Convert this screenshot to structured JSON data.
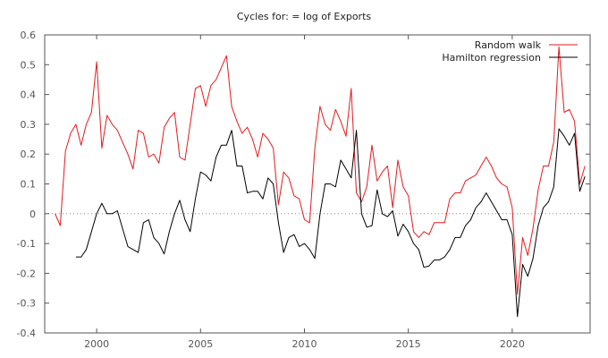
{
  "chart_data": {
    "type": "line",
    "title": "Cycles for: = log of Exports",
    "xlim": [
      1997.5,
      2023.75
    ],
    "ylim": [
      -0.4,
      0.6
    ],
    "xticks": [
      2000,
      2005,
      2010,
      2015,
      2020
    ],
    "yticks": [
      -0.4,
      -0.3,
      -0.2,
      -0.1,
      0,
      0.1,
      0.2,
      0.3,
      0.4,
      0.5,
      0.6
    ],
    "xtick_labels": [
      "2000",
      "2005",
      "2010",
      "2015",
      "2020"
    ],
    "ytick_labels": [
      "-0.4",
      "-0.3",
      "-0.2",
      "-0.1",
      "0",
      "0.1",
      "0.2",
      "0.3",
      "0.4",
      "0.5",
      "0.6"
    ],
    "zero_line": true,
    "legend": "top-right",
    "series": [
      {
        "name": "Random walk",
        "color": "#e41a1c",
        "points": [
          [
            1998.0,
            0.0
          ],
          [
            1998.25,
            -0.04
          ],
          [
            1998.5,
            0.21
          ],
          [
            1998.75,
            0.27
          ],
          [
            1999.0,
            0.3
          ],
          [
            1999.25,
            0.23
          ],
          [
            1999.5,
            0.3
          ],
          [
            1999.75,
            0.34
          ],
          [
            2000.0,
            0.51
          ],
          [
            2000.25,
            0.22
          ],
          [
            2000.5,
            0.33
          ],
          [
            2000.75,
            0.3
          ],
          [
            2001.0,
            0.28
          ],
          [
            2001.25,
            0.24
          ],
          [
            2001.5,
            0.2
          ],
          [
            2001.75,
            0.15
          ],
          [
            2002.0,
            0.28
          ],
          [
            2002.25,
            0.27
          ],
          [
            2002.5,
            0.19
          ],
          [
            2002.75,
            0.2
          ],
          [
            2003.0,
            0.17
          ],
          [
            2003.25,
            0.29
          ],
          [
            2003.5,
            0.32
          ],
          [
            2003.75,
            0.34
          ],
          [
            2004.0,
            0.19
          ],
          [
            2004.25,
            0.18
          ],
          [
            2004.5,
            0.3
          ],
          [
            2004.75,
            0.42
          ],
          [
            2005.0,
            0.43
          ],
          [
            2005.25,
            0.36
          ],
          [
            2005.5,
            0.43
          ],
          [
            2005.75,
            0.45
          ],
          [
            2006.0,
            0.49
          ],
          [
            2006.25,
            0.53
          ],
          [
            2006.5,
            0.36
          ],
          [
            2006.75,
            0.31
          ],
          [
            2007.0,
            0.27
          ],
          [
            2007.25,
            0.29
          ],
          [
            2007.5,
            0.25
          ],
          [
            2007.75,
            0.19
          ],
          [
            2008.0,
            0.27
          ],
          [
            2008.25,
            0.25
          ],
          [
            2008.5,
            0.22
          ],
          [
            2008.75,
            0.03
          ],
          [
            2009.0,
            0.14
          ],
          [
            2009.25,
            0.12
          ],
          [
            2009.5,
            0.06
          ],
          [
            2009.75,
            0.05
          ],
          [
            2010.0,
            -0.02
          ],
          [
            2010.25,
            -0.03
          ],
          [
            2010.5,
            0.22
          ],
          [
            2010.75,
            0.36
          ],
          [
            2011.0,
            0.3
          ],
          [
            2011.25,
            0.28
          ],
          [
            2011.5,
            0.35
          ],
          [
            2011.75,
            0.31
          ],
          [
            2012.0,
            0.26
          ],
          [
            2012.25,
            0.42
          ],
          [
            2012.5,
            0.07
          ],
          [
            2012.75,
            0.04
          ],
          [
            2013.0,
            0.09
          ],
          [
            2013.25,
            0.23
          ],
          [
            2013.5,
            0.11
          ],
          [
            2013.75,
            0.14
          ],
          [
            2014.0,
            0.16
          ],
          [
            2014.25,
            0.02
          ],
          [
            2014.5,
            0.18
          ],
          [
            2014.75,
            0.09
          ],
          [
            2015.0,
            0.06
          ],
          [
            2015.25,
            -0.06
          ],
          [
            2015.5,
            -0.08
          ],
          [
            2015.75,
            -0.06
          ],
          [
            2016.0,
            -0.07
          ],
          [
            2016.25,
            -0.03
          ],
          [
            2016.5,
            -0.03
          ],
          [
            2016.75,
            -0.03
          ],
          [
            2017.0,
            0.05
          ],
          [
            2017.25,
            0.07
          ],
          [
            2017.5,
            0.07
          ],
          [
            2017.75,
            0.11
          ],
          [
            2018.0,
            0.12
          ],
          [
            2018.25,
            0.13
          ],
          [
            2018.5,
            0.16
          ],
          [
            2018.75,
            0.19
          ],
          [
            2019.0,
            0.16
          ],
          [
            2019.25,
            0.12
          ],
          [
            2019.5,
            0.1
          ],
          [
            2019.75,
            0.09
          ],
          [
            2020.0,
            0.02
          ],
          [
            2020.25,
            -0.27
          ],
          [
            2020.5,
            -0.08
          ],
          [
            2020.75,
            -0.14
          ],
          [
            2021.0,
            -0.05
          ],
          [
            2021.25,
            0.08
          ],
          [
            2021.5,
            0.16
          ],
          [
            2021.75,
            0.16
          ],
          [
            2022.0,
            0.24
          ],
          [
            2022.25,
            0.56
          ],
          [
            2022.5,
            0.34
          ],
          [
            2022.75,
            0.35
          ],
          [
            2023.0,
            0.31
          ],
          [
            2023.25,
            0.1
          ],
          [
            2023.5,
            0.16
          ]
        ]
      },
      {
        "name": "Hamilton regression",
        "color": "#000000",
        "points": [
          [
            1999.0,
            -0.145
          ],
          [
            1999.25,
            -0.145
          ],
          [
            1999.5,
            -0.12
          ],
          [
            1999.75,
            -0.06
          ],
          [
            2000.0,
            0.0
          ],
          [
            2000.25,
            0.035
          ],
          [
            2000.5,
            0.0
          ],
          [
            2000.75,
            0.0
          ],
          [
            2001.0,
            0.01
          ],
          [
            2001.25,
            -0.05
          ],
          [
            2001.5,
            -0.11
          ],
          [
            2001.75,
            -0.12
          ],
          [
            2002.0,
            -0.13
          ],
          [
            2002.25,
            -0.03
          ],
          [
            2002.5,
            -0.02
          ],
          [
            2002.75,
            -0.08
          ],
          [
            2003.0,
            -0.1
          ],
          [
            2003.25,
            -0.135
          ],
          [
            2003.5,
            -0.06
          ],
          [
            2003.75,
            0.0
          ],
          [
            2004.0,
            0.045
          ],
          [
            2004.25,
            -0.02
          ],
          [
            2004.5,
            -0.06
          ],
          [
            2004.75,
            0.05
          ],
          [
            2005.0,
            0.14
          ],
          [
            2005.25,
            0.13
          ],
          [
            2005.5,
            0.11
          ],
          [
            2005.75,
            0.19
          ],
          [
            2006.0,
            0.23
          ],
          [
            2006.25,
            0.23
          ],
          [
            2006.5,
            0.28
          ],
          [
            2006.75,
            0.16
          ],
          [
            2007.0,
            0.16
          ],
          [
            2007.25,
            0.07
          ],
          [
            2007.5,
            0.075
          ],
          [
            2007.75,
            0.075
          ],
          [
            2008.0,
            0.05
          ],
          [
            2008.25,
            0.12
          ],
          [
            2008.5,
            0.1
          ],
          [
            2008.75,
            -0.03
          ],
          [
            2009.0,
            -0.13
          ],
          [
            2009.25,
            -0.08
          ],
          [
            2009.5,
            -0.07
          ],
          [
            2009.75,
            -0.11
          ],
          [
            2010.0,
            -0.1
          ],
          [
            2010.25,
            -0.12
          ],
          [
            2010.5,
            -0.15
          ],
          [
            2010.75,
            0.0
          ],
          [
            2011.0,
            0.1
          ],
          [
            2011.25,
            0.1
          ],
          [
            2011.5,
            0.09
          ],
          [
            2011.75,
            0.18
          ],
          [
            2012.0,
            0.15
          ],
          [
            2012.25,
            0.12
          ],
          [
            2012.5,
            0.28
          ],
          [
            2012.75,
            0.0
          ],
          [
            2013.0,
            -0.045
          ],
          [
            2013.25,
            -0.04
          ],
          [
            2013.5,
            0.08
          ],
          [
            2013.75,
            0.0
          ],
          [
            2014.0,
            -0.01
          ],
          [
            2014.25,
            0.01
          ],
          [
            2014.5,
            -0.075
          ],
          [
            2014.75,
            -0.035
          ],
          [
            2015.0,
            -0.06
          ],
          [
            2015.25,
            -0.1
          ],
          [
            2015.5,
            -0.12
          ],
          [
            2015.75,
            -0.18
          ],
          [
            2016.0,
            -0.175
          ],
          [
            2016.25,
            -0.155
          ],
          [
            2016.5,
            -0.155
          ],
          [
            2016.75,
            -0.145
          ],
          [
            2017.0,
            -0.12
          ],
          [
            2017.25,
            -0.08
          ],
          [
            2017.5,
            -0.08
          ],
          [
            2017.75,
            -0.04
          ],
          [
            2018.0,
            -0.02
          ],
          [
            2018.25,
            0.02
          ],
          [
            2018.5,
            0.04
          ],
          [
            2018.75,
            0.07
          ],
          [
            2019.0,
            0.04
          ],
          [
            2019.25,
            0.01
          ],
          [
            2019.5,
            -0.02
          ],
          [
            2019.75,
            -0.02
          ],
          [
            2020.0,
            -0.07
          ],
          [
            2020.25,
            -0.345
          ],
          [
            2020.5,
            -0.17
          ],
          [
            2020.75,
            -0.21
          ],
          [
            2021.0,
            -0.15
          ],
          [
            2021.25,
            -0.04
          ],
          [
            2021.5,
            0.02
          ],
          [
            2021.75,
            0.04
          ],
          [
            2022.0,
            0.09
          ],
          [
            2022.25,
            0.285
          ],
          [
            2022.5,
            0.26
          ],
          [
            2022.75,
            0.23
          ],
          [
            2023.0,
            0.27
          ],
          [
            2023.25,
            0.075
          ],
          [
            2023.5,
            0.125
          ]
        ]
      }
    ]
  }
}
